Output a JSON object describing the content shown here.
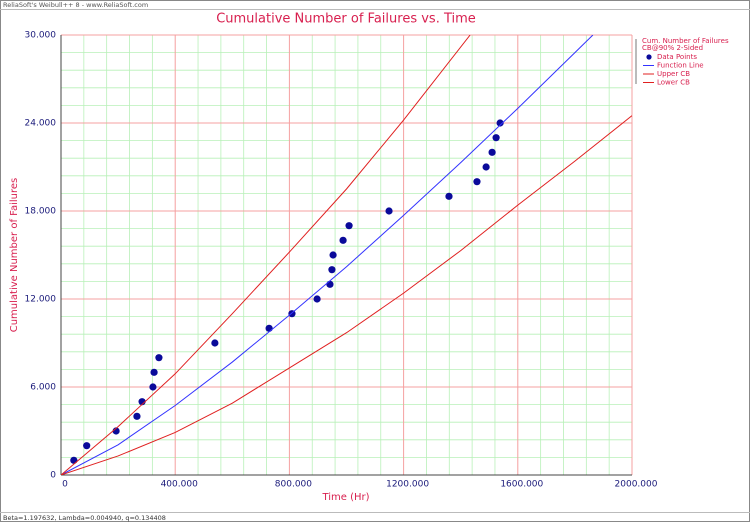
{
  "header": "ReliaSoft's Weibull++ 8 - www.ReliaSoft.com",
  "footer": "Beta=1.197632, Lambda=0.004940, q=0.134408",
  "chart_data": {
    "type": "line",
    "title": "Cumulative Number of Failures vs. Time",
    "x_label": "Time (Hr)",
    "y_label": "Cumulative Number of Failures",
    "legend_title": [
      "Cum. Number of Failures",
      "CB@90% 2-Sided"
    ],
    "legend": "right",
    "grid": true,
    "xlim": [
      0,
      2000
    ],
    "ylim": [
      0,
      30
    ],
    "xticks": [
      0,
      {
        "value": 400,
        "label": "400.000"
      },
      {
        "value": 800,
        "label": "800.000"
      },
      {
        "value": 1200,
        "label": "1200.000"
      },
      {
        "value": 1600,
        "label": "1600.000"
      },
      {
        "value": 2000,
        "label": "2000.000"
      }
    ],
    "yticks": [
      0,
      {
        "value": 6,
        "label": "6.000"
      },
      {
        "value": 12,
        "label": "12.000"
      },
      {
        "value": 18,
        "label": "18.000"
      },
      {
        "value": 24,
        "label": "24.000"
      },
      {
        "value": 30,
        "label": "30.000"
      }
    ],
    "series": [
      {
        "name": "Data Points",
        "type": "scatter",
        "color": "#0a0a9a",
        "x": [
          45,
          90,
          193,
          266,
          284,
          322,
          326,
          343,
          539,
          729,
          809,
          897,
          942,
          949,
          953,
          988,
          1009,
          1149,
          1359,
          1457,
          1489,
          1510,
          1524,
          1538
        ],
        "values": [
          1,
          2,
          3,
          4,
          5,
          6,
          7,
          8,
          9,
          10,
          11,
          12,
          13,
          14,
          15,
          16,
          17,
          18,
          19,
          20,
          21,
          22,
          23,
          24
        ]
      },
      {
        "name": "Function Line",
        "type": "line",
        "color": "#3333ff",
        "x": [
          0,
          200,
          400,
          600,
          800,
          1000,
          1200,
          1400,
          1600,
          1800,
          1863
        ],
        "values": [
          0,
          2.06,
          4.74,
          7.7,
          10.9,
          14.2,
          17.7,
          21.3,
          25.0,
          28.8,
          30
        ]
      },
      {
        "name": "Upper CB",
        "type": "line",
        "color": "#e02020",
        "x": [
          0,
          200,
          400,
          600,
          800,
          1000,
          1200,
          1433
        ],
        "values": [
          0,
          3.3,
          6.9,
          11.0,
          15.2,
          19.5,
          24.2,
          30
        ]
      },
      {
        "name": "Lower CB",
        "type": "line",
        "color": "#e02020",
        "x": [
          0,
          200,
          400,
          600,
          800,
          1000,
          1200,
          1400,
          1600,
          1800,
          2000
        ],
        "values": [
          0,
          1.3,
          2.9,
          4.9,
          7.3,
          9.7,
          12.4,
          15.3,
          18.4,
          21.4,
          24.5
        ]
      }
    ]
  }
}
